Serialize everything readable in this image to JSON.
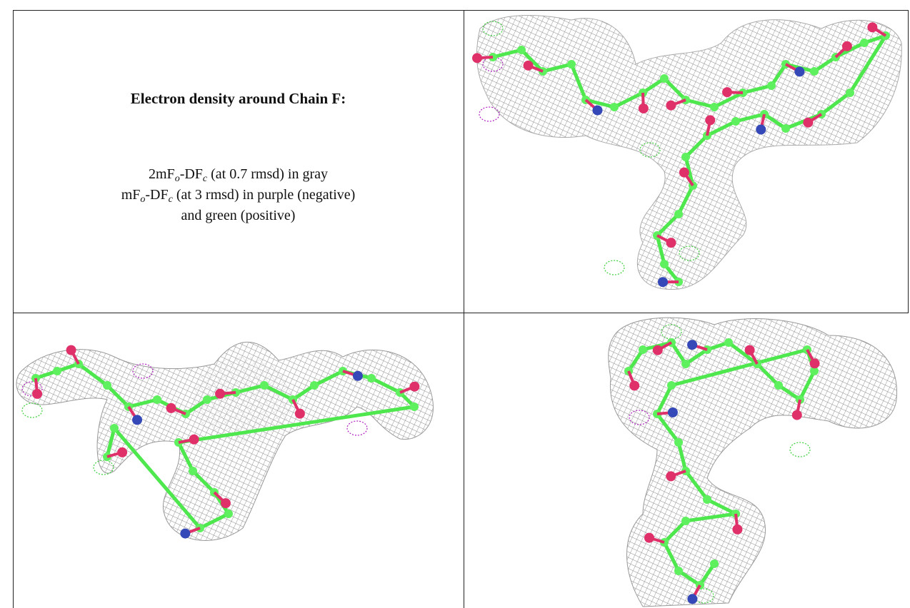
{
  "caption": {
    "title": "Electron density around Chain F:",
    "lines": [
      [
        "2mF",
        "o",
        "-DF",
        "c",
        " (at 0.7 rmsd) in gray"
      ],
      [
        "mF",
        "o",
        "-DF",
        "c",
        " (at 3 rmsd) in purple (negative)"
      ],
      [
        "and green (positive)"
      ]
    ]
  }
}
